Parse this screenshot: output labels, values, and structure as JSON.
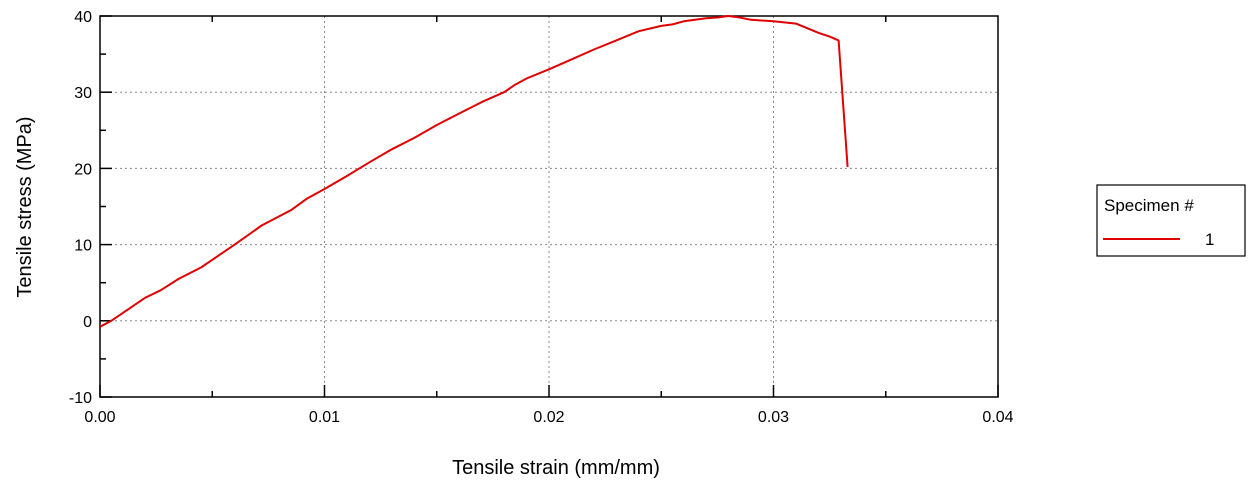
{
  "chart_data": {
    "type": "line",
    "xlabel": "Tensile strain (mm/mm)",
    "ylabel": "Tensile stress (MPa)",
    "xlim": [
      0,
      0.04
    ],
    "ylim": [
      -10,
      40
    ],
    "x_ticks": [
      0.0,
      0.01,
      0.02,
      0.03,
      0.04
    ],
    "x_tick_labels": [
      "0.00",
      "0.01",
      "0.02",
      "0.03",
      "0.04"
    ],
    "y_ticks": [
      -10,
      0,
      10,
      20,
      30,
      40
    ],
    "y_tick_labels": [
      "-10",
      "0",
      "10",
      "20",
      "30",
      "40"
    ],
    "grid": true,
    "legend": {
      "title": "Specimen #",
      "position": "right",
      "entries": [
        {
          "label": "1",
          "color": "#e00000"
        }
      ]
    },
    "series": [
      {
        "legend_label": "1",
        "color": "#e00000",
        "x": [
          0.0,
          0.0005,
          0.001,
          0.0015,
          0.002,
          0.0027,
          0.0035,
          0.0045,
          0.005,
          0.006,
          0.0072,
          0.0085,
          0.0092,
          0.01,
          0.011,
          0.012,
          0.013,
          0.014,
          0.015,
          0.016,
          0.017,
          0.018,
          0.0185,
          0.019,
          0.02,
          0.021,
          0.022,
          0.023,
          0.024,
          0.025,
          0.0255,
          0.026,
          0.027,
          0.0275,
          0.028,
          0.0285,
          0.029,
          0.03,
          0.031,
          0.032,
          0.0325,
          0.0329,
          0.0333
        ],
        "y": [
          -0.8,
          0.0,
          1.0,
          2.0,
          3.0,
          4.0,
          5.5,
          7.0,
          8.0,
          10.0,
          12.5,
          14.5,
          16.0,
          17.3,
          19.0,
          20.8,
          22.5,
          24.0,
          25.7,
          27.2,
          28.7,
          30.0,
          31.0,
          31.8,
          33.0,
          34.3,
          35.6,
          36.8,
          38.0,
          38.7,
          38.9,
          39.3,
          39.7,
          39.8,
          40.0,
          39.8,
          39.5,
          39.3,
          39.0,
          37.8,
          37.3,
          36.8,
          20.2
        ]
      }
    ]
  }
}
